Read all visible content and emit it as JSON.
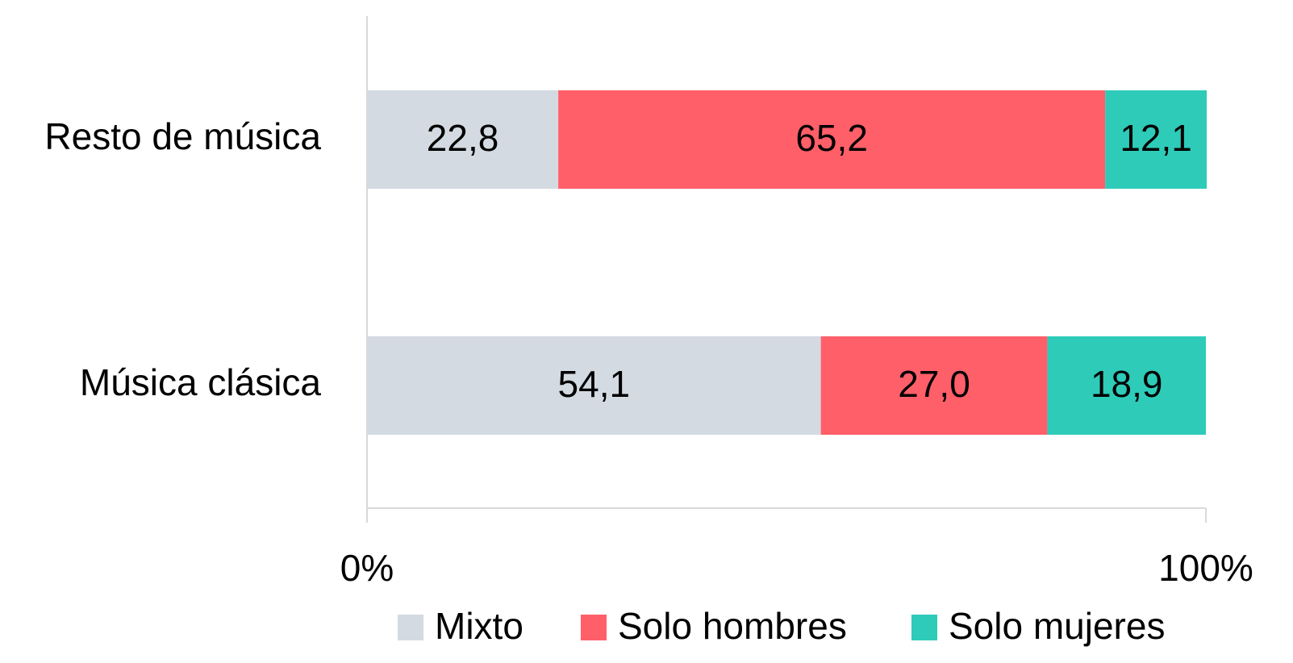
{
  "chart_data": {
    "type": "stacked-bar-horizontal",
    "categories": [
      "Resto de música",
      "Música clásica"
    ],
    "series": [
      {
        "name": "Mixto",
        "color": "#d3dae2",
        "values": [
          22.8,
          54.1
        ],
        "value_labels": [
          "22,8",
          "54,1"
        ]
      },
      {
        "name": "Solo hombres",
        "color": "#ff5f69",
        "values": [
          65.2,
          27.0
        ],
        "value_labels": [
          "65,2",
          "27,0"
        ]
      },
      {
        "name": "Solo mujeres",
        "color": "#2ecbb9",
        "values": [
          12.1,
          18.9
        ],
        "value_labels": [
          "12,1",
          "18,9"
        ]
      }
    ],
    "xlim": [
      0,
      100
    ],
    "xticks": [
      {
        "value": 0,
        "label": "0%"
      },
      {
        "value": 100,
        "label": "100%"
      }
    ],
    "legend": "bottom"
  }
}
